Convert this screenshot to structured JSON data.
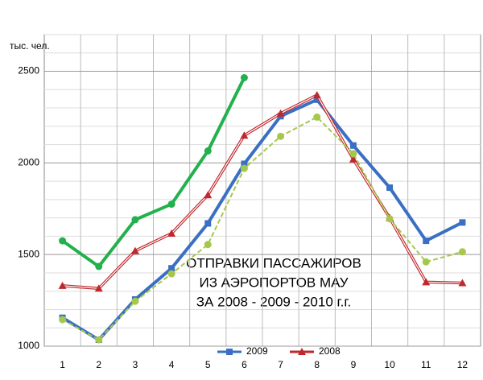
{
  "chart_data": {
    "type": "line",
    "ylabel": "тыс. чел.",
    "annotation": [
      "ОТПРАВКИ ПАССАЖИРОВ",
      "ИЗ АЭРОПОРТОВ МАУ",
      "ЗА 2008 - 2009 - 2010 г.г."
    ],
    "categories": [
      "1",
      "2",
      "3",
      "4",
      "5",
      "6",
      "7",
      "8",
      "9",
      "10",
      "11",
      "12"
    ],
    "ylim": [
      1000,
      2700
    ],
    "yticks": [
      1000,
      1500,
      2000,
      2500
    ],
    "yticks_minor": [
      1100,
      1200,
      1300,
      1400,
      1600,
      1700,
      1800,
      1900,
      2100,
      2200,
      2300,
      2400,
      2600,
      2700
    ],
    "grid": true,
    "legend": "bottom",
    "series": [
      {
        "color": "#22b14c",
        "marker": "circle",
        "values": [
          1575,
          1435,
          1690,
          1775,
          2065,
          2465,
          null,
          null,
          null,
          null,
          null,
          null
        ]
      },
      {
        "name": "2009",
        "color": "#3a6fc4",
        "marker": "square",
        "values": [
          1155,
          1035,
          1255,
          1425,
          1670,
          1995,
          2255,
          2345,
          2095,
          1865,
          1575,
          1675
        ]
      },
      {
        "name": "2008",
        "color": "#c0282d",
        "marker": "triangle",
        "values": [
          1330,
          1315,
          1520,
          1615,
          1825,
          2150,
          2270,
          2370,
          2020,
          1700,
          1350,
          1345
        ]
      },
      {
        "color": "#a6c84a",
        "marker": "circle",
        "dashed": true,
        "values": [
          1145,
          1035,
          1245,
          1395,
          1555,
          1970,
          2145,
          2250,
          2050,
          1695,
          1460,
          1515
        ]
      }
    ]
  }
}
